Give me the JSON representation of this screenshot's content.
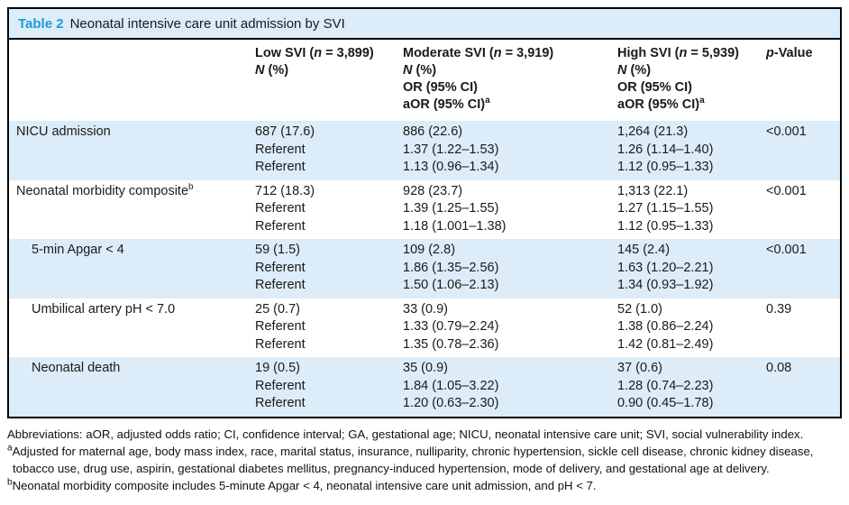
{
  "colors": {
    "accent_blue": "#1e9bd7",
    "row_shade": "#dcedf9",
    "border": "#000000"
  },
  "table": {
    "title": {
      "label": "Table 2",
      "text": "Neonatal intensive care unit admission by SVI"
    },
    "header": {
      "low": [
        "Low SVI (*n* = 3,899)",
        "*N* (%)"
      ],
      "moderate": [
        "Moderate SVI (*n* = 3,919)",
        "*N* (%)",
        "OR (95% CI)",
        "aOR (95% CI)^a^"
      ],
      "high": [
        "High SVI (*n* = 5,939)",
        "*N* (%)",
        "OR (95% CI)",
        "aOR (95% CI)^a^"
      ],
      "p": "*p*-Value"
    },
    "rows": [
      {
        "label": "NICU admission",
        "low": [
          "687 (17.6)",
          "Referent",
          "Referent"
        ],
        "moderate": [
          "886 (22.6)",
          "1.37 (1.22–1.53)",
          "1.13 (0.96–1.34)"
        ],
        "high": [
          "1,264 (21.3)",
          "1.26 (1.14–1.40)",
          "1.12 (0.95–1.33)"
        ],
        "p": "<0.001"
      },
      {
        "label": "Neonatal morbidity composite^b^",
        "low": [
          "712 (18.3)",
          "Referent",
          "Referent"
        ],
        "moderate": [
          "928 (23.7)",
          "1.39 (1.25–1.55)",
          "1.18 (1.001–1.38)"
        ],
        "high": [
          "1,313 (22.1)",
          "1.27 (1.15–1.55)",
          "1.12 (0.95–1.33)"
        ],
        "p": "<0.001"
      },
      {
        "label": "5-min Apgar < 4",
        "low": [
          "59 (1.5)",
          "Referent",
          "Referent"
        ],
        "moderate": [
          "109 (2.8)",
          "1.86 (1.35–2.56)",
          "1.50 (1.06–2.13)"
        ],
        "high": [
          "145 (2.4)",
          "1.63 (1.20–2.21)",
          "1.34 (0.93–1.92)"
        ],
        "p": "<0.001"
      },
      {
        "label": "Umbilical artery pH < 7.0",
        "low": [
          "25 (0.7)",
          "Referent",
          "Referent"
        ],
        "moderate": [
          "33 (0.9)",
          "1.33 (0.79–2.24)",
          "1.35 (0.78–2.36)"
        ],
        "high": [
          "52 (1.0)",
          "1.38 (0.86–2.24)",
          "1.42 (0.81–2.49)"
        ],
        "p": "0.39"
      },
      {
        "label": "Neonatal death",
        "low": [
          "19 (0.5)",
          "Referent",
          "Referent"
        ],
        "moderate": [
          "35 (0.9)",
          "1.84 (1.05–3.22)",
          "1.20 (0.63–2.30)"
        ],
        "high": [
          "37 (0.6)",
          "1.28 (0.74–2.23)",
          "0.90 (0.45–1.78)"
        ],
        "p": "0.08"
      }
    ]
  },
  "footnotes": [
    "Abbreviations: aOR, adjusted odds ratio; CI, confidence interval; GA, gestational age; NICU, neonatal intensive care unit;  SVI, social vulnerability index.",
    "^a^Adjusted for maternal age, body mass index, race, marital status, insurance, nulliparity, chronic hypertension, sickle cell disease, chronic kidney disease, tobacco use, drug use, aspirin, gestational diabetes mellitus, pregnancy-induced hypertension, mode of delivery, and gestational age at delivery.",
    "^b^Neonatal morbidity composite includes 5-minute Apgar < 4, neonatal intensive care unit admission, and pH < 7."
  ]
}
